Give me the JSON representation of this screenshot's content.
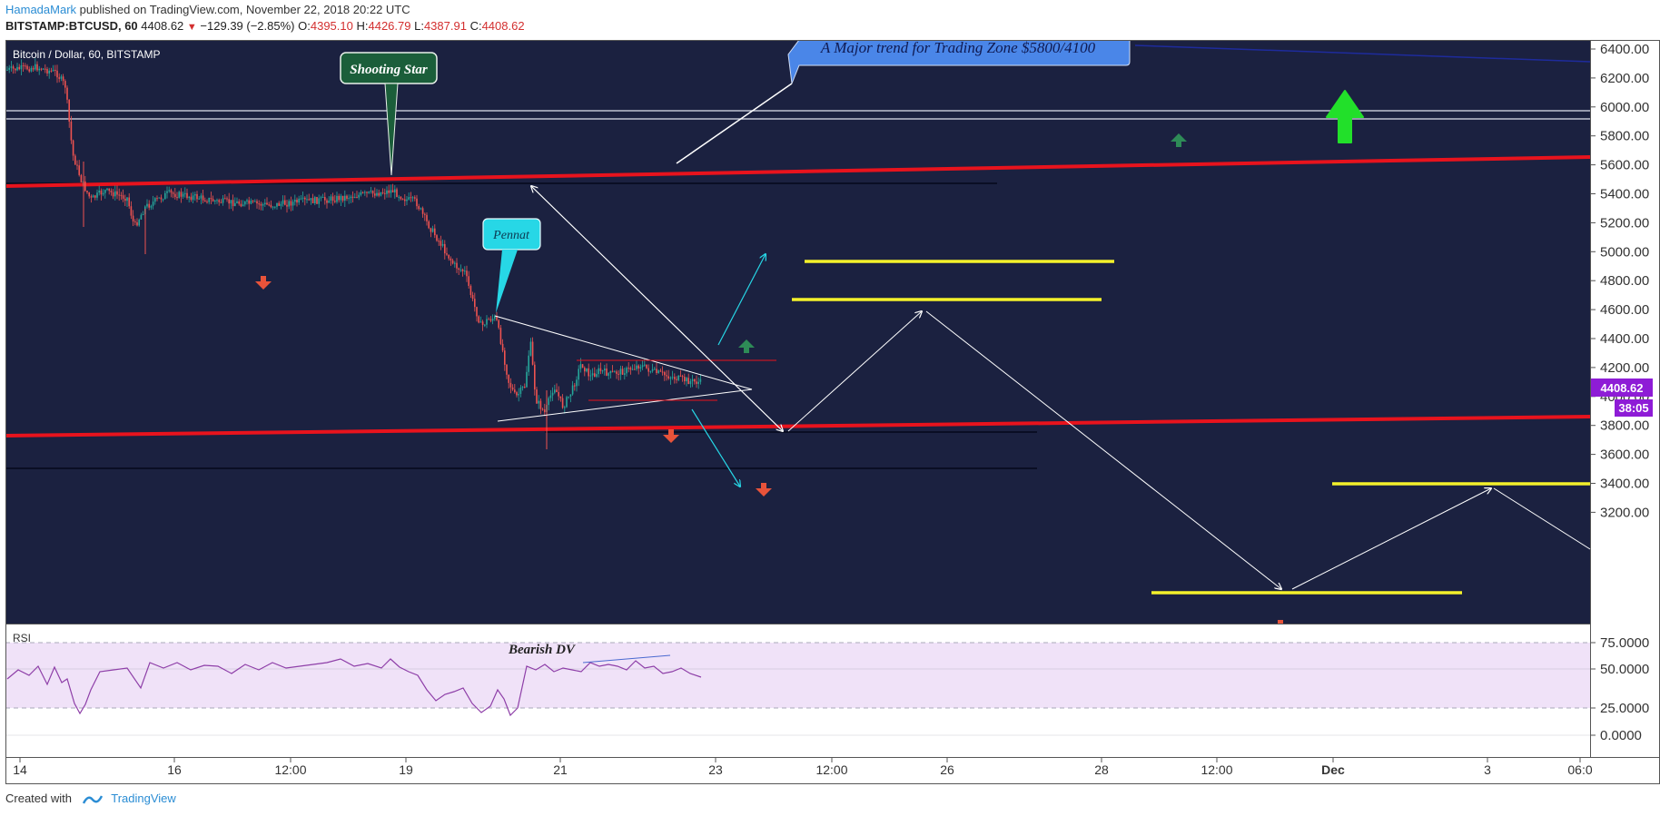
{
  "header": {
    "author": "HamadaMark",
    "published": "published on TradingView.com, November 22, 2018 20:22 UTC",
    "symbol": "BITSTAMP:BTCUSD, 60",
    "last": "4408.62",
    "change": "−129.39 (−2.85%)",
    "o_label": "O:",
    "o": "4395.10",
    "h_label": "H:",
    "h": "4426.79",
    "l_label": "L:",
    "l": "4387.91",
    "c_label": "C:",
    "c": "4408.62"
  },
  "legend": {
    "title": "Bitcoin / Dollar, 60, BITSTAMP",
    "rsi": "RSI"
  },
  "price_axis": [
    "6400.00",
    "6200.00",
    "6000.00",
    "5800.00",
    "5600.00",
    "5400.00",
    "5200.00",
    "5000.00",
    "4800.00",
    "4600.00",
    "4400.00",
    "4200.00",
    "4000.00",
    "3800.00",
    "3600.00",
    "3400.00",
    "3200.00"
  ],
  "price_tag": {
    "price": "4408.62",
    "countdown": "38:05"
  },
  "rsi_axis": [
    "75.0000",
    "50.0000",
    "25.0000",
    "0.0000"
  ],
  "time_axis": [
    "14",
    "16",
    "12:00",
    "19",
    "21",
    "23",
    "12:00",
    "26",
    "28",
    "12:00",
    "Dec",
    "3",
    "06:0"
  ],
  "annotations": {
    "trend": "A Major trend for Trading Zone $5800/4100",
    "shooting_star": "Shooting Star",
    "pennat": "Pennat",
    "bearish_dv": "Bearish DV"
  },
  "colors": {
    "background": "#1b2140",
    "trend_line": "#e8131d",
    "support_yellow": "#f4f12b",
    "candle_up": "#26a69a",
    "candle_down": "#ef5350",
    "rsi_line": "#8e3fa8",
    "rsi_band": "#f0e2f8",
    "price_tag": "#8e1cd6",
    "trend_callout": "#4a86e8",
    "shooting_star_callout": "#1b5e3a",
    "pennat_callout": "#27d7e6",
    "arrow_up_big": "#22e02a"
  },
  "footer": {
    "created": "Created with",
    "brand": "TradingView"
  }
}
